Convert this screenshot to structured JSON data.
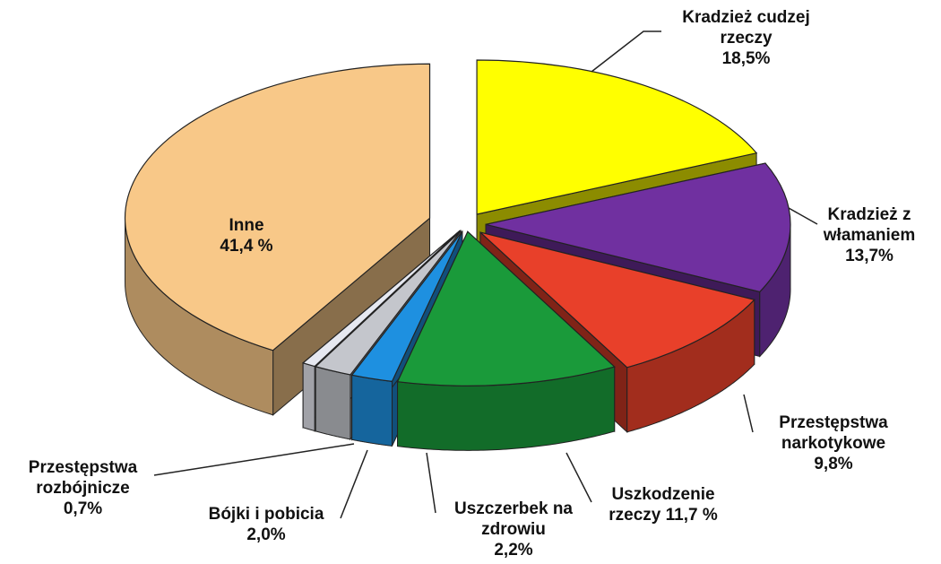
{
  "chart_data": {
    "type": "pie3d",
    "categories": [
      "Kradzież cudzej rzeczy",
      "Kradzież z włamaniem",
      "Przestępstwa narkotykowe",
      "Uszkodzenie rzeczy",
      "Uszczerbek na zdrowiu",
      "Bójki i pobicia",
      "Przestępstwa rozbójnicze",
      "Inne"
    ],
    "values": [
      18.5,
      13.7,
      9.8,
      11.7,
      2.2,
      2.0,
      0.7,
      41.4
    ],
    "value_labels": [
      "18,5%",
      "13,7%",
      "9,8%",
      "11,7 %",
      "2,2%",
      "2,0%",
      "0,7%",
      "41,4 %"
    ],
    "colors": [
      "#ffff00",
      "#7030a0",
      "#e8402a",
      "#1a9a3a",
      "#1e90e0",
      "#c4c6cc",
      "#e6e8f0",
      "#f8c888"
    ]
  }
}
